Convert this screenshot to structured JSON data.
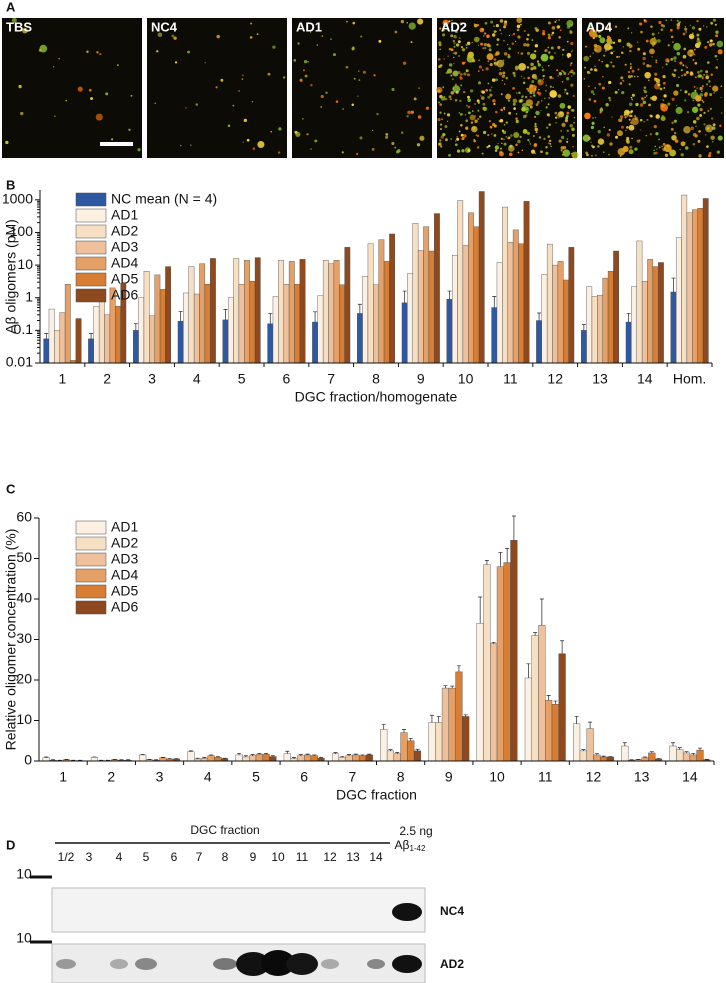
{
  "panel_a": {
    "label": "A",
    "images": [
      "TBS",
      "NC4",
      "AD1",
      "AD2",
      "AD4"
    ]
  },
  "chart_data": [
    {
      "type": "bar",
      "panel_label": "B",
      "log_scale": true,
      "y_label": "Aβ oligomers (pM)",
      "x_label": "DGC fraction/homogenate",
      "categories": [
        "1",
        "2",
        "3",
        "4",
        "5",
        "6",
        "7",
        "8",
        "9",
        "10",
        "11",
        "12",
        "13",
        "14",
        "Hom."
      ],
      "ylim": [
        0.01,
        2000
      ],
      "yticks": [
        0.01,
        0.1,
        1,
        10,
        100,
        1000
      ],
      "series": [
        {
          "name": "NC mean (N = 4)",
          "color": "#2f58a3",
          "values": [
            0.055,
            0.055,
            0.1,
            0.19,
            0.21,
            0.16,
            0.18,
            0.33,
            0.7,
            0.9,
            0.5,
            0.2,
            0.1,
            0.18,
            1.5
          ],
          "errors": [
            0.025,
            0.025,
            0.06,
            0.19,
            0.23,
            0.17,
            0.19,
            0.3,
            0.9,
            0.7,
            0.6,
            0.14,
            0.05,
            0.15,
            2.5
          ]
        },
        {
          "name": "AD1",
          "color": "#fbf0e2",
          "values": [
            0.45,
            0.55,
            1.0,
            1.4,
            1.0,
            1.1,
            1.15,
            4.5,
            5.5,
            20,
            12,
            5.2,
            2.2,
            2.2,
            70
          ]
        },
        {
          "name": "AD2",
          "color": "#f6dfc2",
          "values": [
            0.1,
            1.2,
            6.5,
            9.0,
            16,
            14,
            14,
            45,
            190,
            950,
            600,
            44,
            1.1,
            55,
            1400
          ]
        },
        {
          "name": "AD3",
          "color": "#eec19c",
          "values": [
            0.35,
            0.3,
            0.28,
            1.3,
            2.6,
            2.6,
            11,
            2.5,
            28,
            40,
            50,
            10,
            1.2,
            3.2,
            400
          ]
        },
        {
          "name": "AD4",
          "color": "#e4a066",
          "values": [
            2.6,
            2.0,
            5.0,
            11,
            14,
            13,
            14,
            60,
            150,
            400,
            120,
            13,
            4.0,
            15,
            500
          ]
        },
        {
          "name": "AD5",
          "color": "#d87d34",
          "values": [
            0.012,
            0.55,
            1.8,
            2.6,
            3.2,
            2.6,
            2.5,
            13,
            27,
            150,
            45,
            3.5,
            6.5,
            9,
            550
          ]
        },
        {
          "name": "AD6",
          "color": "#8e4a1e",
          "values": [
            0.23,
            2.8,
            9.0,
            16,
            17,
            15,
            35,
            90,
            380,
            1800,
            900,
            35,
            27,
            12,
            1100
          ]
        }
      ]
    },
    {
      "type": "bar",
      "panel_label": "C",
      "log_scale": false,
      "y_label": "Relative oligomer concentration (%)",
      "x_label": "DGC fraction",
      "categories": [
        "1",
        "2",
        "3",
        "4",
        "5",
        "6",
        "7",
        "8",
        "9",
        "10",
        "11",
        "12",
        "13",
        "14"
      ],
      "ylim": [
        0,
        60
      ],
      "yticks": [
        0,
        10,
        20,
        30,
        40,
        50,
        60
      ],
      "series": [
        {
          "name": "AD1",
          "color": "#fbf0e2",
          "values": [
            0.8,
            0.9,
            1.5,
            2.3,
            1.5,
            1.8,
            1.8,
            7.8,
            9.5,
            34,
            20.5,
            9.2,
            3.7,
            3.7
          ],
          "errors": [
            0.2,
            0.1,
            0.1,
            0.2,
            0.4,
            0.6,
            0.3,
            1.2,
            1.8,
            6.5,
            3.5,
            1.8,
            0.8,
            0.8
          ]
        },
        {
          "name": "AD2",
          "color": "#f6dfc2",
          "values": [
            0.2,
            0.1,
            0.3,
            0.5,
            1.0,
            0.6,
            0.9,
            2.5,
            9.5,
            48.5,
            31,
            2.5,
            0.2,
            2.8
          ],
          "errors": [
            0.1,
            0.1,
            0.1,
            0.2,
            0.3,
            0.3,
            0.2,
            0.3,
            1.5,
            1.0,
            0.7,
            0.3,
            0.1,
            0.5
          ]
        },
        {
          "name": "AD3",
          "color": "#eec19c",
          "values": [
            0.1,
            0.1,
            0.2,
            0.7,
            1.3,
            1.3,
            1.3,
            1.8,
            18,
            29,
            33.5,
            8,
            0.3,
            2.0
          ],
          "errors": [
            0.1,
            0.1,
            0.1,
            0.2,
            0.3,
            0.3,
            0.3,
            0.3,
            0.6,
            0.3,
            6.5,
            1.6,
            0.1,
            0.3
          ]
        },
        {
          "name": "AD4",
          "color": "#e4a066",
          "values": [
            0.3,
            0.3,
            0.8,
            1.3,
            1.7,
            1.5,
            1.5,
            7.0,
            18,
            48,
            15,
            1.5,
            0.8,
            1.5
          ],
          "errors": [
            0.1,
            0.1,
            0.1,
            0.2,
            0.2,
            0.2,
            0.2,
            0.8,
            0.5,
            3.5,
            1.2,
            0.3,
            0.2,
            0.4
          ]
        },
        {
          "name": "AD5",
          "color": "#d87d34",
          "values": [
            0.1,
            0.2,
            0.5,
            0.9,
            1.7,
            1.3,
            1.3,
            5.0,
            22,
            49,
            14,
            1.0,
            2.0,
            2.7
          ],
          "errors": [
            0.1,
            0.1,
            0.1,
            0.2,
            0.2,
            0.2,
            0.2,
            0.6,
            1.5,
            3.5,
            0.8,
            0.2,
            0.3,
            0.5
          ]
        },
        {
          "name": "AD6",
          "color": "#8e4a1e",
          "values": [
            0.1,
            0.2,
            0.5,
            0.6,
            1.1,
            0.7,
            1.5,
            2.5,
            11,
            54.5,
            26.5,
            1.0,
            0.5,
            0.3
          ],
          "errors": [
            0.1,
            0.1,
            0.1,
            0.1,
            0.2,
            0.2,
            0.2,
            0.4,
            0.4,
            6,
            3.2,
            0.1,
            0.1,
            0.1
          ]
        }
      ]
    }
  ],
  "panel_d": {
    "label": "D",
    "axis_title": "DGC fraction",
    "lanes": [
      "1/2",
      "3",
      "4",
      "5",
      "6",
      "7",
      "8",
      "9",
      "10",
      "11",
      "12",
      "13",
      "14"
    ],
    "standard_amount": "2.5 ng",
    "standard_name": "Aβ",
    "standard_subscript": "1-42",
    "markers": [
      10,
      10
    ],
    "rows": [
      "NC4",
      "AD2"
    ]
  }
}
